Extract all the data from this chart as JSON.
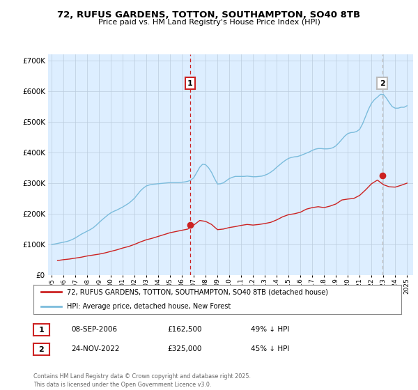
{
  "title": "72, RUFUS GARDENS, TOTTON, SOUTHAMPTON, SO40 8TB",
  "subtitle": "Price paid vs. HM Land Registry's House Price Index (HPI)",
  "legend_line1": "72, RUFUS GARDENS, TOTTON, SOUTHAMPTON, SO40 8TB (detached house)",
  "legend_line2": "HPI: Average price, detached house, New Forest",
  "annotation1_date": "08-SEP-2006",
  "annotation1_price": "£162,500",
  "annotation1_hpi": "49% ↓ HPI",
  "annotation2_date": "24-NOV-2022",
  "annotation2_price": "£325,000",
  "annotation2_hpi": "45% ↓ HPI",
  "footer": "Contains HM Land Registry data © Crown copyright and database right 2025.\nThis data is licensed under the Open Government Licence v3.0.",
  "hpi_color": "#7bbcdc",
  "price_color": "#cc2222",
  "vline1_color": "#cc2222",
  "vline2_color": "#bbbbbb",
  "background_color": "#ffffff",
  "chart_bg_color": "#ddeeff",
  "grid_color": "#bbccdd",
  "ylim": [
    0,
    720000
  ],
  "xlim_start": 1994.7,
  "xlim_end": 2025.5,
  "sale1_x": 2006.69,
  "sale1_y": 162500,
  "sale2_x": 2022.9,
  "sale2_y": 325000,
  "hpi_x": [
    1995.0,
    1995.25,
    1995.5,
    1995.75,
    1996.0,
    1996.25,
    1996.5,
    1996.75,
    1997.0,
    1997.25,
    1997.5,
    1997.75,
    1998.0,
    1998.25,
    1998.5,
    1998.75,
    1999.0,
    1999.25,
    1999.5,
    1999.75,
    2000.0,
    2000.25,
    2000.5,
    2000.75,
    2001.0,
    2001.25,
    2001.5,
    2001.75,
    2002.0,
    2002.25,
    2002.5,
    2002.75,
    2003.0,
    2003.25,
    2003.5,
    2003.75,
    2004.0,
    2004.25,
    2004.5,
    2004.75,
    2005.0,
    2005.25,
    2005.5,
    2005.75,
    2006.0,
    2006.25,
    2006.5,
    2006.75,
    2007.0,
    2007.25,
    2007.5,
    2007.75,
    2008.0,
    2008.25,
    2008.5,
    2008.75,
    2009.0,
    2009.25,
    2009.5,
    2009.75,
    2010.0,
    2010.25,
    2010.5,
    2010.75,
    2011.0,
    2011.25,
    2011.5,
    2011.75,
    2012.0,
    2012.25,
    2012.5,
    2012.75,
    2013.0,
    2013.25,
    2013.5,
    2013.75,
    2014.0,
    2014.25,
    2014.5,
    2014.75,
    2015.0,
    2015.25,
    2015.5,
    2015.75,
    2016.0,
    2016.25,
    2016.5,
    2016.75,
    2017.0,
    2017.25,
    2017.5,
    2017.75,
    2018.0,
    2018.25,
    2018.5,
    2018.75,
    2019.0,
    2019.25,
    2019.5,
    2019.75,
    2020.0,
    2020.25,
    2020.5,
    2020.75,
    2021.0,
    2021.25,
    2021.5,
    2021.75,
    2022.0,
    2022.25,
    2022.5,
    2022.75,
    2023.0,
    2023.25,
    2023.5,
    2023.75,
    2024.0,
    2024.25,
    2024.5,
    2024.75,
    2025.0
  ],
  "hpi_y": [
    100000,
    101000,
    103000,
    105000,
    107000,
    109000,
    112000,
    116000,
    121000,
    127000,
    133000,
    138000,
    143000,
    148000,
    154000,
    162000,
    171000,
    180000,
    188000,
    196000,
    203000,
    208000,
    212000,
    217000,
    222000,
    228000,
    234000,
    242000,
    251000,
    263000,
    275000,
    284000,
    291000,
    294000,
    296000,
    297000,
    298000,
    299000,
    300000,
    301000,
    302000,
    302000,
    302000,
    302000,
    303000,
    304000,
    306000,
    310000,
    318000,
    335000,
    352000,
    362000,
    360000,
    350000,
    335000,
    315000,
    297000,
    298000,
    301000,
    308000,
    315000,
    319000,
    322000,
    322000,
    322000,
    322000,
    323000,
    322000,
    321000,
    321000,
    322000,
    323000,
    326000,
    330000,
    336000,
    343000,
    352000,
    360000,
    368000,
    375000,
    381000,
    384000,
    386000,
    387000,
    390000,
    394000,
    398000,
    402000,
    407000,
    411000,
    413000,
    413000,
    412000,
    412000,
    413000,
    416000,
    422000,
    432000,
    443000,
    454000,
    462000,
    465000,
    466000,
    469000,
    476000,
    494000,
    518000,
    542000,
    561000,
    573000,
    581000,
    590000,
    590000,
    578000,
    563000,
    550000,
    545000,
    545000,
    548000,
    548000,
    553000
  ],
  "price_x": [
    1995.5,
    1996.0,
    1996.5,
    1997.0,
    1997.5,
    1998.0,
    1998.5,
    1999.0,
    1999.5,
    2000.0,
    2000.5,
    2001.0,
    2001.5,
    2002.0,
    2002.5,
    2003.0,
    2003.5,
    2004.0,
    2004.5,
    2005.0,
    2005.5,
    2006.0,
    2006.5,
    2007.0,
    2007.5,
    2008.0,
    2008.5,
    2009.0,
    2009.5,
    2010.0,
    2010.5,
    2011.0,
    2011.5,
    2012.0,
    2012.5,
    2013.0,
    2013.5,
    2014.0,
    2014.5,
    2015.0,
    2015.5,
    2016.0,
    2016.5,
    2017.0,
    2017.5,
    2018.0,
    2018.5,
    2019.0,
    2019.5,
    2020.0,
    2020.5,
    2021.0,
    2021.5,
    2022.0,
    2022.5,
    2023.0,
    2023.5,
    2024.0,
    2024.5,
    2025.0
  ],
  "price_y": [
    47000,
    50000,
    52000,
    55000,
    58000,
    62000,
    65000,
    68000,
    72000,
    77000,
    82000,
    88000,
    93000,
    100000,
    108000,
    115000,
    120000,
    126000,
    132000,
    138000,
    142000,
    146000,
    150000,
    163000,
    178000,
    175000,
    165000,
    148000,
    150000,
    155000,
    158000,
    162000,
    165000,
    163000,
    165000,
    168000,
    172000,
    180000,
    190000,
    197000,
    200000,
    205000,
    215000,
    220000,
    223000,
    220000,
    225000,
    232000,
    245000,
    248000,
    250000,
    260000,
    278000,
    298000,
    310000,
    295000,
    288000,
    287000,
    293000,
    300000
  ]
}
